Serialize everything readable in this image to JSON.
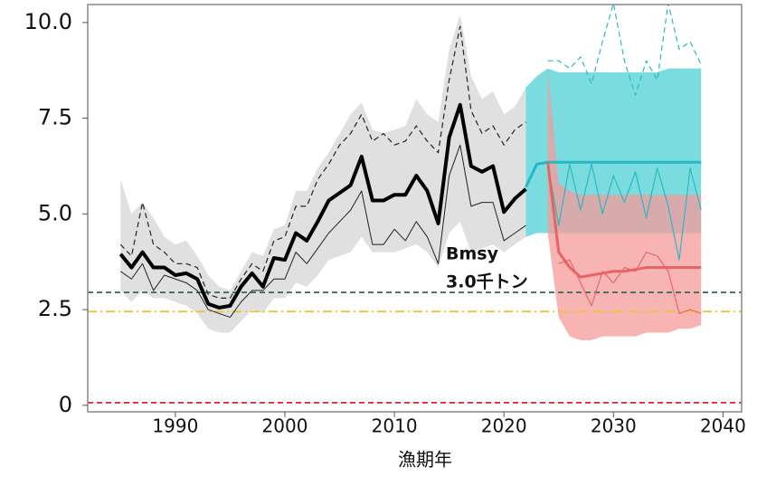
{
  "chart_data": {
    "type": "line",
    "xlabel": "漁期年",
    "annotation": [
      "Bmsy",
      "3.0千トン"
    ],
    "xlim": [
      1982,
      2041.7
    ],
    "ylim": [
      -0.17,
      10.47
    ],
    "xticks": [
      1990,
      2000,
      2010,
      2020,
      2030,
      2040
    ],
    "yticks": [
      0,
      2.5,
      {
        "value": 5,
        "label": "5.0"
      },
      7.5,
      {
        "value": 10,
        "label": "10.0"
      }
    ],
    "bands": [
      {
        "color": "#d6d6d6",
        "x": [
          1985,
          1986,
          1987,
          1988,
          1989,
          1990,
          1991,
          1992,
          1993,
          1994,
          1995,
          1996,
          1997,
          1998,
          1999,
          2000,
          2001,
          2002,
          2003,
          2004,
          2005,
          2006,
          2007,
          2008,
          2009,
          2010,
          2011,
          2012,
          2013,
          2014,
          2015,
          2016,
          2017,
          2018,
          2019,
          2020,
          2021,
          2022
        ],
        "upper": [
          5.9,
          5.0,
          5.3,
          4.9,
          4.4,
          4.2,
          4.3,
          3.9,
          3.4,
          3.1,
          3.0,
          3.5,
          4.0,
          3.9,
          4.6,
          4.7,
          5.6,
          5.6,
          6.2,
          6.6,
          7.1,
          7.6,
          7.9,
          7.2,
          7.1,
          7.2,
          7.3,
          8.0,
          7.6,
          7.4,
          9.3,
          10.2,
          8.6,
          8.0,
          8.2,
          7.6,
          7.8,
          8.3
        ],
        "lower": [
          3.0,
          2.7,
          3.0,
          2.8,
          2.8,
          2.7,
          2.6,
          2.4,
          2.0,
          1.9,
          1.9,
          2.2,
          2.5,
          2.4,
          2.8,
          2.8,
          3.2,
          3.1,
          3.4,
          3.8,
          3.9,
          4.0,
          4.4,
          4.0,
          4.0,
          4.0,
          4.1,
          4.2,
          4.0,
          3.6,
          4.5,
          4.8,
          4.0,
          4.1,
          4.2,
          4.0,
          4.2,
          4.4
        ]
      },
      {
        "color": "#4fd0d6",
        "x": [
          2022,
          2023,
          2024,
          2025,
          2026,
          2027,
          2028,
          2029,
          2030,
          2031,
          2032,
          2033,
          2034,
          2035,
          2036,
          2037,
          2038
        ],
        "upper": [
          8.3,
          8.6,
          8.8,
          8.7,
          8.7,
          8.7,
          8.7,
          8.7,
          8.7,
          8.7,
          8.7,
          8.7,
          8.7,
          8.8,
          8.8,
          8.8,
          8.8
        ],
        "lower": [
          4.4,
          4.5,
          4.5,
          4.5,
          4.5,
          4.5,
          4.5,
          4.5,
          4.5,
          4.5,
          4.5,
          4.5,
          4.5,
          4.5,
          4.5,
          4.5,
          4.5
        ]
      },
      {
        "color": "#f59a9a",
        "x": [
          2024,
          2025,
          2026,
          2027,
          2028,
          2029,
          2030,
          2031,
          2032,
          2033,
          2034,
          2035,
          2036,
          2037,
          2038
        ],
        "upper": [
          8.8,
          5.8,
          5.6,
          5.5,
          5.5,
          5.5,
          5.5,
          5.5,
          5.5,
          5.5,
          5.5,
          5.5,
          5.5,
          5.5,
          5.5
        ],
        "lower": [
          4.5,
          2.3,
          1.8,
          1.7,
          1.7,
          1.8,
          1.8,
          1.8,
          1.8,
          1.9,
          1.9,
          1.9,
          2.0,
          2.0,
          2.1
        ]
      }
    ],
    "series": [
      {
        "color": "#222222",
        "style": "dashed",
        "width": 1.2,
        "x": [
          1985,
          1986,
          1987,
          1988,
          1989,
          1990,
          1991,
          1992,
          1993,
          1994,
          1995,
          1996,
          1997,
          1998,
          1999,
          2000,
          2001,
          2002,
          2003,
          2004,
          2005,
          2006,
          2007,
          2008,
          2009,
          2010,
          2011,
          2012,
          2013,
          2014,
          2015,
          2016,
          2017,
          2018,
          2019,
          2020,
          2021,
          2022
        ],
        "values": [
          4.2,
          3.9,
          5.3,
          4.2,
          4.0,
          3.7,
          3.7,
          3.6,
          2.9,
          2.8,
          2.8,
          3.3,
          3.7,
          3.5,
          4.3,
          4.4,
          5.2,
          5.2,
          5.9,
          6.3,
          6.8,
          7.1,
          7.6,
          6.9,
          7.1,
          6.8,
          6.9,
          7.3,
          6.9,
          6.6,
          8.5,
          9.9,
          7.7,
          7.1,
          7.3,
          6.8,
          7.2,
          7.4
        ]
      },
      {
        "color": "#222222",
        "style": "solid",
        "width": 1,
        "x": [
          1985,
          1986,
          1987,
          1988,
          1989,
          1990,
          1991,
          1992,
          1993,
          1994,
          1995,
          1996,
          1997,
          1998,
          1999,
          2000,
          2001,
          2002,
          2003,
          2004,
          2005,
          2006,
          2007,
          2008,
          2009,
          2010,
          2011,
          2012,
          2013,
          2014,
          2015,
          2016,
          2017,
          2018,
          2019,
          2020,
          2021,
          2022
        ],
        "values": [
          3.5,
          3.3,
          3.7,
          3.0,
          3.4,
          3.3,
          3.2,
          3.0,
          2.5,
          2.4,
          2.3,
          2.7,
          3.0,
          3.0,
          3.3,
          3.3,
          4.0,
          3.7,
          4.1,
          4.5,
          4.8,
          5.1,
          5.6,
          4.2,
          4.2,
          4.6,
          4.3,
          4.8,
          4.4,
          3.7,
          6.0,
          6.8,
          5.2,
          5.3,
          5.3,
          4.3,
          4.5,
          4.7
        ]
      },
      {
        "color": "#000000",
        "style": "solid",
        "width": 4,
        "x": [
          1985,
          1986,
          1987,
          1988,
          1989,
          1990,
          1991,
          1992,
          1993,
          1994,
          1995,
          1996,
          1997,
          1998,
          1999,
          2000,
          2001,
          2002,
          2003,
          2004,
          2005,
          2006,
          2007,
          2008,
          2009,
          2010,
          2011,
          2012,
          2013,
          2014,
          2015,
          2016,
          2017,
          2018,
          2019,
          2020,
          2021,
          2022
        ],
        "values": [
          3.95,
          3.6,
          4.0,
          3.6,
          3.6,
          3.4,
          3.45,
          3.3,
          2.65,
          2.55,
          2.6,
          3.1,
          3.45,
          3.1,
          3.85,
          3.8,
          4.5,
          4.3,
          4.8,
          5.35,
          5.55,
          5.75,
          6.5,
          5.35,
          5.35,
          5.5,
          5.5,
          6.0,
          5.6,
          4.75,
          7.0,
          7.85,
          6.25,
          6.1,
          6.25,
          5.05,
          5.4,
          5.65
        ]
      },
      {
        "color": "#2bb8c2",
        "style": "dashed",
        "width": 1.2,
        "x": [
          2024,
          2025,
          2026,
          2027,
          2028,
          2029,
          2030,
          2031,
          2032,
          2033,
          2034,
          2035,
          2036,
          2037,
          2038
        ],
        "values": [
          9.0,
          9.0,
          8.8,
          9.1,
          8.4,
          9.5,
          10.5,
          9.0,
          8.1,
          9.0,
          8.5,
          10.5,
          9.3,
          9.5,
          8.9
        ]
      },
      {
        "color": "#2bb8c2",
        "style": "solid",
        "width": 1.2,
        "x": [
          2024,
          2025,
          2026,
          2027,
          2028,
          2029,
          2030,
          2031,
          2032,
          2033,
          2034,
          2035,
          2036,
          2037,
          2038
        ],
        "values": [
          6.3,
          4.7,
          6.3,
          5.1,
          6.3,
          5.0,
          6.0,
          5.3,
          6.1,
          4.9,
          6.2,
          5.2,
          3.8,
          6.2,
          5.1
        ]
      },
      {
        "color": "#e36a6a",
        "style": "solid",
        "width": 1.2,
        "x": [
          2025,
          2026,
          2027,
          2028,
          2029,
          2030,
          2031,
          2032,
          2033,
          2034,
          2035,
          2036,
          2037,
          2038
        ],
        "values": [
          3.7,
          3.8,
          3.2,
          2.6,
          3.5,
          3.2,
          3.6,
          3.5,
          4.0,
          3.9,
          3.5,
          2.4,
          2.5,
          2.4
        ]
      },
      {
        "color": "#22b8c4",
        "style": "solid",
        "width": 3,
        "x": [
          2022,
          2023,
          2024,
          2025,
          2026,
          2027,
          2028,
          2029,
          2030,
          2031,
          2032,
          2033,
          2034,
          2035,
          2036,
          2037,
          2038
        ],
        "values": [
          5.7,
          6.3,
          6.35,
          6.35,
          6.35,
          6.35,
          6.35,
          6.35,
          6.35,
          6.35,
          6.35,
          6.35,
          6.35,
          6.35,
          6.35,
          6.35,
          6.35
        ]
      },
      {
        "color": "#e86464",
        "style": "solid",
        "width": 3,
        "x": [
          2024,
          2025,
          2026,
          2027,
          2028,
          2029,
          2030,
          2031,
          2032,
          2033,
          2034,
          2035,
          2036,
          2037,
          2038
        ],
        "values": [
          6.35,
          4.0,
          3.6,
          3.35,
          3.4,
          3.45,
          3.5,
          3.5,
          3.55,
          3.6,
          3.6,
          3.6,
          3.6,
          3.6,
          3.6
        ]
      }
    ],
    "hlines": [
      {
        "value": 2.95,
        "color": "#3f6e60",
        "style": "dashed"
      },
      {
        "value": 2.45,
        "color": "#f0c23a",
        "style": "dashdot"
      },
      {
        "value": 0.07,
        "color": "#e02020",
        "style": "dashed"
      }
    ]
  }
}
